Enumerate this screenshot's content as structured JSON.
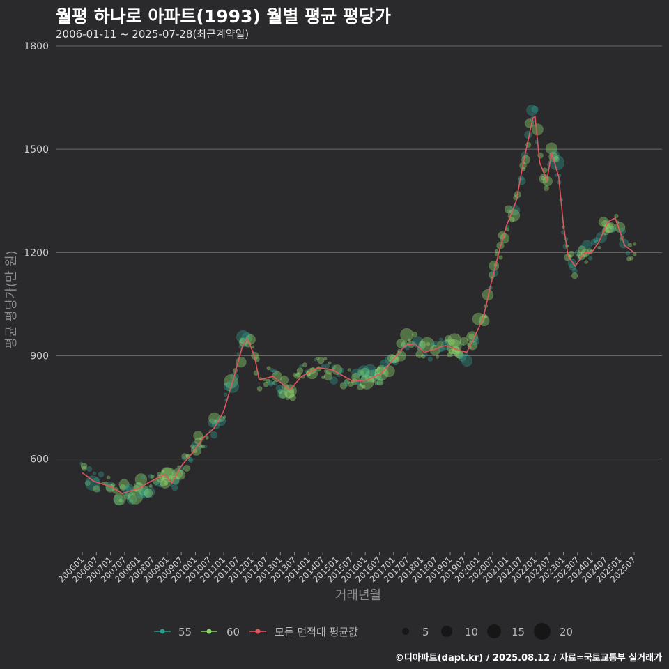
{
  "title": "월평 하나로 아파트(1993) 월별 평균 평당가",
  "subtitle": "2006-01-11 ~ 2025-07-28(최근계약일)",
  "caption": "©디아파트(dapt.kr) / 2025.08.12 / 자료=국토교통부 실거래가",
  "colors": {
    "background": "#2a292b",
    "grid": "#6a6a6a",
    "s55": "#2a9d8f",
    "s60": "#8bd66a",
    "avg": "#e0585e",
    "size_legend": "#161616"
  },
  "chart_data": {
    "type": "scatter",
    "xlabel": "거래년월",
    "ylabel": "평균 평당가(만 원)",
    "ylim": [
      330,
      1800
    ],
    "yticks": [
      600,
      900,
      1200,
      1500,
      1800
    ],
    "x_tick_labels": [
      "200601",
      "200607",
      "200701",
      "200707",
      "200801",
      "200807",
      "200901",
      "200907",
      "201001",
      "201007",
      "201101",
      "201107",
      "201201",
      "201207",
      "201301",
      "201307",
      "201401",
      "201407",
      "201501",
      "201507",
      "201601",
      "201607",
      "201701",
      "201707",
      "201801",
      "201807",
      "201901",
      "201907",
      "202001",
      "202007",
      "202101",
      "202107",
      "202201",
      "202207",
      "202301",
      "202307",
      "202401",
      "202407",
      "202501",
      "202507"
    ],
    "legend": {
      "series": [
        {
          "name": "55"
        },
        {
          "name": "60"
        },
        {
          "name": "모든 면적대 평균값"
        }
      ],
      "sizes": [
        "5",
        "10",
        "15",
        "20"
      ]
    },
    "anchors": [
      [
        "2006-01",
        560
      ],
      [
        "2006-06",
        535
      ],
      [
        "2007-01",
        520
      ],
      [
        "2007-06",
        500
      ],
      [
        "2008-01",
        515
      ],
      [
        "2008-06",
        535
      ],
      [
        "2008-12",
        555
      ],
      [
        "2009-03",
        530
      ],
      [
        "2009-07",
        580
      ],
      [
        "2009-12",
        620
      ],
      [
        "2010-04",
        660
      ],
      [
        "2010-09",
        690
      ],
      [
        "2011-01",
        740
      ],
      [
        "2011-05",
        830
      ],
      [
        "2011-09",
        930
      ],
      [
        "2011-11",
        950
      ],
      [
        "2012-02",
        900
      ],
      [
        "2012-04",
        830
      ],
      [
        "2012-10",
        840
      ],
      [
        "2013-05",
        800
      ],
      [
        "2013-10",
        840
      ],
      [
        "2014-05",
        865
      ],
      [
        "2014-11",
        860
      ],
      [
        "2015-04",
        840
      ],
      [
        "2015-08",
        825
      ],
      [
        "2016-02",
        830
      ],
      [
        "2016-08",
        850
      ],
      [
        "2017-01",
        890
      ],
      [
        "2017-06",
        930
      ],
      [
        "2017-10",
        935
      ],
      [
        "2018-02",
        910
      ],
      [
        "2018-07",
        920
      ],
      [
        "2018-11",
        930
      ],
      [
        "2019-03",
        920
      ],
      [
        "2019-08",
        910
      ],
      [
        "2019-11",
        950
      ],
      [
        "2020-03",
        1010
      ],
      [
        "2020-06",
        1100
      ],
      [
        "2020-10",
        1210
      ],
      [
        "2021-01",
        1280
      ],
      [
        "2021-05",
        1350
      ],
      [
        "2021-08",
        1460
      ],
      [
        "2021-12",
        1590
      ],
      [
        "2022-01",
        1595
      ],
      [
        "2022-03",
        1460
      ],
      [
        "2022-06",
        1410
      ],
      [
        "2022-08",
        1490
      ],
      [
        "2022-11",
        1420
      ],
      [
        "2023-01",
        1280
      ],
      [
        "2023-03",
        1190
      ],
      [
        "2023-06",
        1160
      ],
      [
        "2023-10",
        1200
      ],
      [
        "2024-01",
        1200
      ],
      [
        "2024-04",
        1230
      ],
      [
        "2024-08",
        1290
      ],
      [
        "2024-11",
        1300
      ],
      [
        "2025-03",
        1220
      ],
      [
        "2025-07",
        1200
      ]
    ]
  }
}
